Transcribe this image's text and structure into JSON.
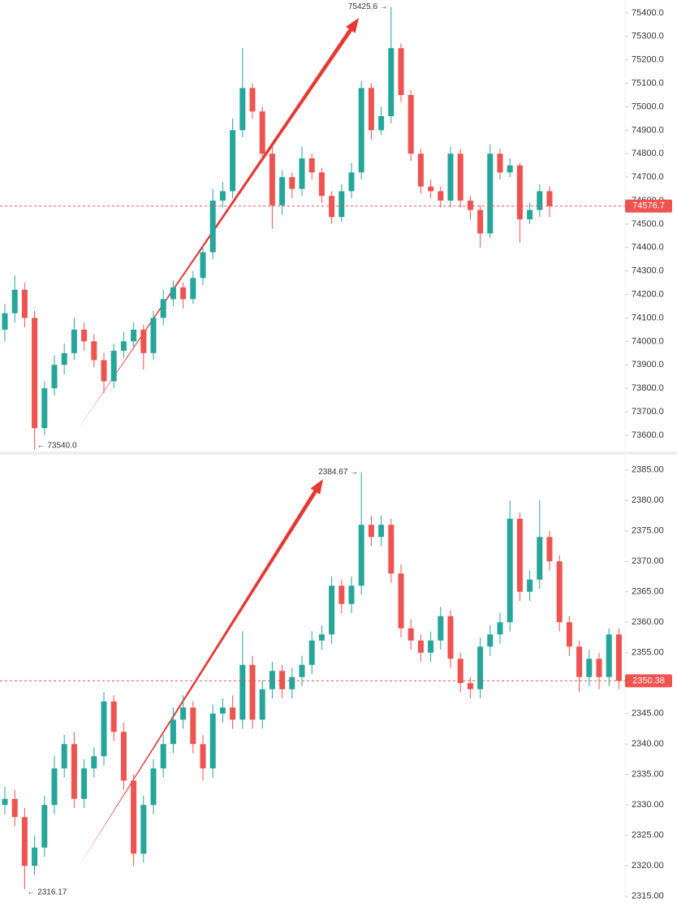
{
  "chart_data": [
    {
      "type": "candlestick",
      "up_color": "#26a69a",
      "down_color": "#ef5350",
      "ylim": [
        73534,
        75455
      ],
      "yticks": [
        {
          "value": 73600,
          "label": "73600.0"
        },
        {
          "value": 73700,
          "label": "73700.0"
        },
        {
          "value": 73800,
          "label": "73800.0"
        },
        {
          "value": 73900,
          "label": "73900.0"
        },
        {
          "value": 74000,
          "label": "74000.0"
        },
        {
          "value": 74100,
          "label": "74100.0"
        },
        {
          "value": 74200,
          "label": "74200.0"
        },
        {
          "value": 74300,
          "label": "74300.0"
        },
        {
          "value": 74400,
          "label": "74400.0"
        },
        {
          "value": 74500,
          "label": "74500.0"
        },
        {
          "value": 74600,
          "label": "74600.0"
        },
        {
          "value": 74700,
          "label": "74700.0"
        },
        {
          "value": 74800,
          "label": "74800.0"
        },
        {
          "value": 74900,
          "label": "74900.0"
        },
        {
          "value": 75000,
          "label": "75000.0"
        },
        {
          "value": 75100,
          "label": "75100.0"
        },
        {
          "value": 75200,
          "label": "75200.0"
        },
        {
          "value": 75300,
          "label": "75300.0"
        },
        {
          "value": 75400,
          "label": "75400.0"
        }
      ],
      "open": [
        74050,
        74120,
        74220,
        74100,
        73630,
        73800,
        73900,
        73950,
        74050,
        74000,
        73920,
        73830,
        73960,
        74000,
        74050,
        73950,
        74100,
        74180,
        74230,
        74180,
        74270,
        74380,
        74600,
        74640,
        74900,
        75080,
        74980,
        74800,
        74580,
        74700,
        74650,
        74780,
        74720,
        74620,
        74530,
        74640,
        74720,
        75080,
        74900,
        74960,
        75250,
        75050,
        74800,
        74660,
        74640,
        74600,
        74800,
        74600,
        74560,
        74460,
        74800,
        74720,
        74750,
        74520,
        74560,
        74640
      ],
      "high": [
        74160,
        74280,
        74250,
        74130,
        73830,
        73940,
        73990,
        74100,
        74080,
        74030,
        73950,
        73990,
        74040,
        74080,
        74070,
        74130,
        74220,
        74260,
        74250,
        74300,
        74410,
        74650,
        74680,
        74950,
        75250,
        75100,
        75000,
        74830,
        74730,
        74720,
        74830,
        74800,
        74740,
        74640,
        74670,
        74760,
        75110,
        75100,
        75000,
        75425.6,
        75270,
        75070,
        74820,
        74690,
        74660,
        74830,
        74820,
        74620,
        74580,
        74840,
        74820,
        74780,
        74760,
        74590,
        74670,
        74660
      ],
      "low": [
        74000,
        74080,
        74060,
        73540,
        73600,
        73770,
        73860,
        73920,
        73960,
        73890,
        73780,
        73800,
        73930,
        73970,
        73880,
        73920,
        74070,
        74150,
        74140,
        74160,
        74240,
        74350,
        74570,
        74610,
        74870,
        74950,
        74770,
        74480,
        74540,
        74610,
        74620,
        74690,
        74590,
        74500,
        74510,
        74610,
        74690,
        74860,
        74880,
        74930,
        75020,
        74770,
        74630,
        74610,
        74570,
        74570,
        74570,
        74520,
        74400,
        74440,
        74690,
        74700,
        74420,
        74500,
        74530,
        74530
      ],
      "close": [
        74120,
        74220,
        74100,
        73630,
        73800,
        73900,
        73950,
        74050,
        74000,
        73920,
        73830,
        73960,
        74000,
        74050,
        73950,
        74100,
        74180,
        74230,
        74180,
        74270,
        74380,
        74600,
        74640,
        74900,
        75080,
        74980,
        74800,
        74580,
        74700,
        74650,
        74780,
        74720,
        74620,
        74530,
        74640,
        74720,
        75080,
        74900,
        74960,
        75250,
        75050,
        74800,
        74660,
        74640,
        74600,
        74800,
        74600,
        74560,
        74460,
        74800,
        74720,
        74750,
        74520,
        74560,
        74640,
        74576.7
      ],
      "high_marker": {
        "value": 75425.6,
        "label": "75425.6 →"
      },
      "low_marker": {
        "value": 73540,
        "label": "← 73540.0"
      },
      "last_price": {
        "value": 74576.7,
        "label": "74576.7"
      }
    },
    {
      "type": "candlestick",
      "up_color": "#26a69a",
      "down_color": "#ef5350",
      "ylim": [
        2313.9,
        2387.5
      ],
      "yticks": [
        {
          "value": 2315,
          "label": "2315.00"
        },
        {
          "value": 2320,
          "label": "2320.00"
        },
        {
          "value": 2325,
          "label": "2325.00"
        },
        {
          "value": 2330,
          "label": "2330.00"
        },
        {
          "value": 2335,
          "label": "2335.00"
        },
        {
          "value": 2340,
          "label": "2340.00"
        },
        {
          "value": 2345,
          "label": "2345.00"
        },
        {
          "value": 2350,
          "label": "2350.00"
        },
        {
          "value": 2355,
          "label": "2355.00"
        },
        {
          "value": 2360,
          "label": "2360.00"
        },
        {
          "value": 2365,
          "label": "2365.00"
        },
        {
          "value": 2370,
          "label": "2370.00"
        },
        {
          "value": 2375,
          "label": "2375.00"
        },
        {
          "value": 2380,
          "label": "2380.00"
        },
        {
          "value": 2385,
          "label": "2385.00"
        }
      ],
      "open": [
        2330,
        2331,
        2328,
        2320,
        2323,
        2330,
        2336,
        2340,
        2331,
        2336,
        2338,
        2347,
        2342,
        2334,
        2322,
        2330,
        2336,
        2340,
        2344,
        2346,
        2340,
        2336,
        2345,
        2346,
        2344,
        2353,
        2344,
        2349,
        2352,
        2349,
        2351,
        2353,
        2357,
        2358,
        2366,
        2363,
        2366,
        2376,
        2374,
        2376,
        2368,
        2359,
        2357,
        2355,
        2357,
        2361,
        2354,
        2350,
        2349,
        2356,
        2358,
        2360,
        2377,
        2365,
        2367,
        2374,
        2370,
        2360,
        2356,
        2351,
        2354,
        2351,
        2358
      ],
      "high": [
        2333,
        2332.5,
        2329.5,
        2325,
        2331.5,
        2338,
        2341.5,
        2342,
        2337.5,
        2339.5,
        2348.5,
        2348,
        2343.5,
        2335,
        2331.5,
        2337.5,
        2341.5,
        2346,
        2348,
        2347,
        2341.5,
        2346.5,
        2347.5,
        2348,
        2358.5,
        2354.5,
        2350.5,
        2353.5,
        2353,
        2352.5,
        2354.5,
        2358.5,
        2359.5,
        2367.5,
        2367,
        2367.5,
        2384.67,
        2377.5,
        2377.5,
        2377,
        2369.5,
        2360.5,
        2358,
        2358.5,
        2362.5,
        2362,
        2355,
        2351,
        2357.5,
        2359.5,
        2361.5,
        2380,
        2378,
        2368.5,
        2380,
        2375,
        2371,
        2361,
        2357,
        2355.5,
        2355,
        2359,
        2359
      ],
      "low": [
        2328.5,
        2326.5,
        2316.17,
        2318.5,
        2321.5,
        2328.5,
        2334.5,
        2329.5,
        2329.5,
        2334.5,
        2336.5,
        2340.5,
        2332.5,
        2320,
        2320.5,
        2328.5,
        2334.5,
        2338.5,
        2342.5,
        2338.5,
        2334,
        2334.5,
        2343.5,
        2342.5,
        2342.5,
        2342.5,
        2342.5,
        2347.5,
        2347.5,
        2347.5,
        2349.5,
        2351.5,
        2355.5,
        2356.5,
        2361.5,
        2361.5,
        2364.5,
        2372.5,
        2372.5,
        2366.5,
        2357.5,
        2355.5,
        2353.5,
        2353.5,
        2355.5,
        2352.5,
        2348.5,
        2347.5,
        2347.5,
        2354.5,
        2356.5,
        2358.5,
        2363.5,
        2363.5,
        2365.5,
        2368.5,
        2358.5,
        2354.5,
        2348.5,
        2349.5,
        2349,
        2349.5,
        2349
      ],
      "close": [
        2331,
        2328,
        2320,
        2323,
        2330,
        2336,
        2340,
        2331,
        2336,
        2338,
        2347,
        2342,
        2334,
        2322,
        2330,
        2336,
        2340,
        2344,
        2346,
        2340,
        2336,
        2345,
        2346,
        2344,
        2353,
        2344,
        2349,
        2352,
        2349,
        2351,
        2353,
        2357,
        2358,
        2366,
        2363,
        2366,
        2376,
        2374,
        2376,
        2368,
        2359,
        2357,
        2355,
        2357,
        2361,
        2354,
        2350,
        2349,
        2356,
        2358,
        2360,
        2377,
        2365,
        2367,
        2374,
        2370,
        2360,
        2356,
        2351,
        2354,
        2351,
        2358,
        2350.38
      ],
      "high_marker": {
        "value": 2384.67,
        "label": "2384.67 →"
      },
      "low_marker": {
        "value": 2316.17,
        "label": "← 2316.17"
      },
      "last_price": {
        "value": 2350.38,
        "label": "2350.38"
      }
    }
  ]
}
